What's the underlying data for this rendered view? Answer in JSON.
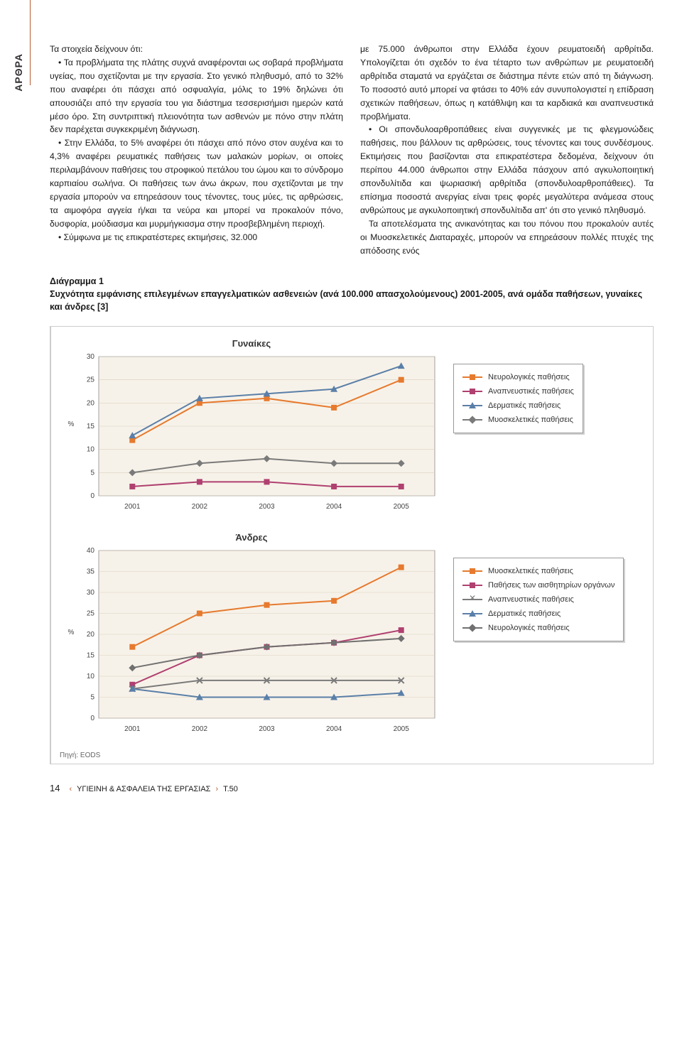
{
  "sidebar_label": "ΑΡΘΡΑ",
  "body": {
    "left": {
      "line1": "Τα στοιχεία δείχνουν ότι:",
      "p1": "• Τα προβλήματα της πλάτης συχνά αναφέρονται ως σοβαρά προβλήματα υγείας, που σχετίζονται με την εργασία. Στο γενικό πληθυσμό, από το 32% που αναφέρει ότι πάσχει από οσφυαλγία, μόλις το 19% δηλώνει ότι απουσιάζει από την εργασία του για διάστημα τεσσερισήμισι ημερών κατά μέσο όρο. Στη συντριπτική πλειονότητα των ασθενών με πόνο στην πλάτη δεν παρέχεται συγκεκριμένη διάγνωση.",
      "p2": "• Στην Ελλάδα, το 5% αναφέρει ότι πάσχει από πόνο στον αυχένα και το 4,3% αναφέρει ρευματικές παθήσεις των μαλακών μορίων, οι οποίες περιλαμβάνουν παθήσεις του στροφικού πετάλου του ώμου και το σύνδρομο καρπιαίου σωλήνα. Οι παθήσεις των άνω άκρων, που σχετίζονται με την εργασία μπορούν να επηρεάσουν τους τένοντες, τους μύες, τις αρθρώσεις, τα αιμοφόρα αγγεία ή/και τα νεύρα και μπορεί να προκαλούν πόνο, δυσφορία, μούδιασμα και μυρμήγκιασμα στην προσβεβλημένη περιοχή.",
      "p3": "• Σύμφωνα με τις επικρατέστερες εκτιμήσεις, 32.000"
    },
    "right": {
      "p1": "με 75.000 άνθρωποι στην Ελλάδα έχουν ρευματοειδή αρθρίτιδα. Υπολογίζεται ότι σχεδόν το ένα τέταρτο των ανθρώπων με ρευματοειδή αρθρίτιδα σταματά να εργάζεται σε διάστημα πέντε ετών από τη διάγνωση. Το ποσοστό αυτό μπορεί να φτάσει το 40% εάν συνυπολογιστεί η επίδραση σχετικών παθήσεων, όπως η κατάθλιψη και τα καρδιακά και αναπνευστικά προβλήματα.",
      "p2": "• Οι σπονδυλοαρθροπάθειες είναι συγγενικές με τις φλεγμονώδεις παθήσεις, που βάλλουν τις αρθρώσεις, τους τένοντες και τους συνδέσμους. Εκτιμήσεις που βασίζονται στα επικρατέστερα δεδομένα, δείχνουν ότι περίπου 44.000 άνθρωποι στην Ελλάδα πάσχουν από αγκυλοποιητική σπονδυλίτιδα και ψωριασική αρθρίτιδα (σπονδυλοαρθροπάθειες). Τα επίσημα ποσοστά ανεργίας είναι τρεις φορές μεγαλύτερα ανάμεσα στους ανθρώπους με αγκυλοποιητική σπονδυλίτιδα απ' ότι στο γενικό πληθυσμό.",
      "p3": "Τα αποτελέσματα της ανικανότητας και του πόνου που προκαλούν αυτές οι Μυοσκελετικές Διαταραχές, μπορούν να επηρεάσουν πολλές πτυχές της απόδοσης ενός"
    }
  },
  "diagram": {
    "label": "Διάγραμμα 1",
    "caption": "Συχνότητα εμφάνισης επιλεγμένων επαγγελματικών ασθενειών (ανά 100.000 απασχολούμενους) 2001-2005, ανά ομάδα παθήσεων, γυναίκες και άνδρες [3]",
    "source": "Πηγή: EODS"
  },
  "chart_women": {
    "type": "line",
    "title": "Γυναίκες",
    "title_fontsize": 13,
    "x_categories": [
      "2001",
      "2002",
      "2003",
      "2004",
      "2005"
    ],
    "ylabel": "%",
    "ylim": [
      0,
      30
    ],
    "ytick_step": 5,
    "plot_bg": "#f7f2e9",
    "grid_color": "#d8d0c0",
    "axis_color": "#666666",
    "label_fontsize": 10,
    "series": [
      {
        "name": "Νευρολογικές παθήσεις",
        "color": "#e67a2e",
        "marker": "square",
        "values": [
          12,
          20,
          21,
          19,
          25
        ]
      },
      {
        "name": "Αναπνευστικές παθήσεις",
        "color": "#b04070",
        "marker": "square",
        "values": [
          2,
          3,
          3,
          2,
          2
        ]
      },
      {
        "name": "Δερματικές παθήσεις",
        "color": "#5a7fa8",
        "marker": "triangle",
        "values": [
          13,
          21,
          22,
          23,
          28
        ]
      },
      {
        "name": "Μυοσκελετικές παθήσεις",
        "color": "#7a7a7a",
        "marker": "diamond",
        "values": [
          5,
          7,
          8,
          7,
          7
        ]
      }
    ]
  },
  "chart_men": {
    "type": "line",
    "title": "Άνδρες",
    "title_fontsize": 13,
    "x_categories": [
      "2001",
      "2002",
      "2003",
      "2004",
      "2005"
    ],
    "ylabel": "%",
    "ylim": [
      0,
      40
    ],
    "ytick_step": 5,
    "plot_bg": "#f7f2e9",
    "grid_color": "#d8d0c0",
    "axis_color": "#666666",
    "label_fontsize": 10,
    "series": [
      {
        "name": "Μυοσκελετικές παθήσεις",
        "color": "#e67a2e",
        "marker": "square",
        "values": [
          17,
          25,
          27,
          28,
          36
        ]
      },
      {
        "name": "Παθήσεις των αισθητηρίων οργάνων",
        "color": "#b04070",
        "marker": "square",
        "values": [
          8,
          15,
          17,
          18,
          21
        ]
      },
      {
        "name": "Αναπνευστικές παθήσεις",
        "color": "#7a7a7a",
        "marker": "x",
        "values": [
          7,
          9,
          9,
          9,
          9
        ]
      },
      {
        "name": "Δερματικές παθήσεις",
        "color": "#5a7fa8",
        "marker": "triangle",
        "values": [
          7,
          5,
          5,
          5,
          6
        ]
      },
      {
        "name": "Νευρολογικές παθήσεις",
        "color": "#707070",
        "marker": "diamond",
        "values": [
          12,
          15,
          17,
          18,
          19
        ]
      }
    ]
  },
  "footer": {
    "page_no": "14",
    "pub": "ΥΓΙΕΙΝΗ & ΑΣΦΑΛΕΙΑ ΤΗΣ ΕΡΓΑΣΙΑΣ",
    "issue": "Τ.50"
  }
}
